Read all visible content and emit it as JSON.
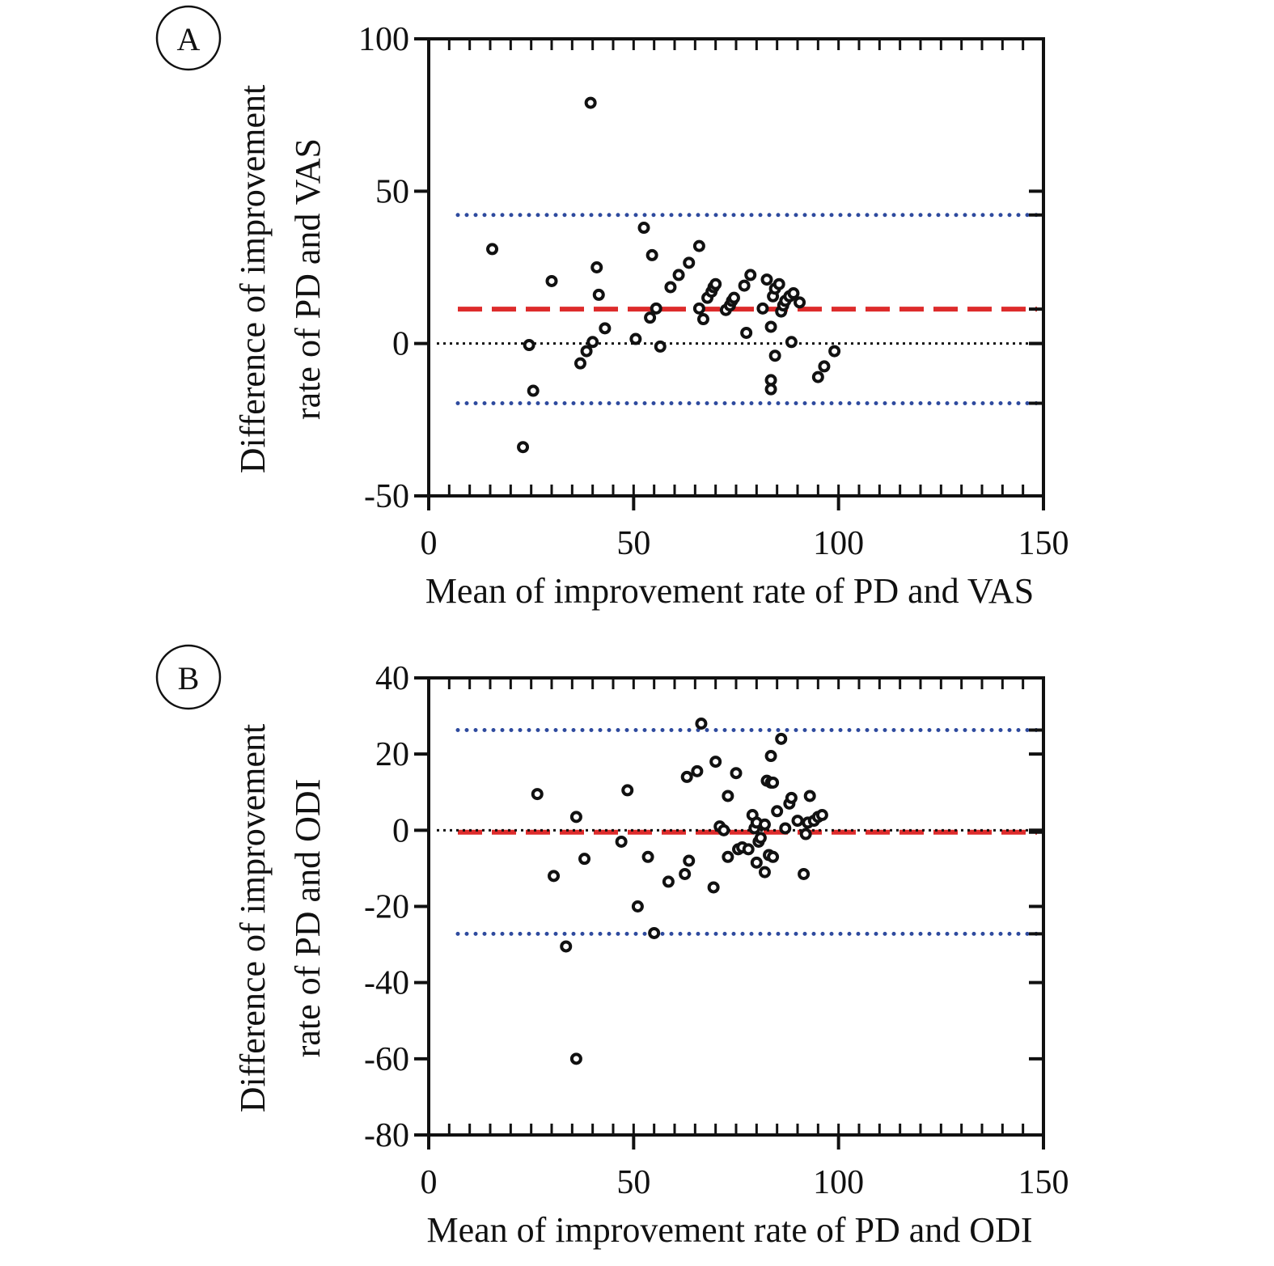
{
  "chart_data": [
    {
      "type": "scatter",
      "panel_label": "A",
      "xlabel": "Mean of improvement rate of PD and VAS",
      "ylabel_line1": "Difference of improvement",
      "ylabel_line2": "rate of PD and VAS",
      "xlim": [
        0,
        150
      ],
      "ylim": [
        -50,
        100
      ],
      "xticks": [
        "0",
        "50",
        "100",
        "150"
      ],
      "xtick_values": [
        0,
        50,
        100,
        150
      ],
      "yticks": [
        "100",
        "50",
        "0",
        "-50"
      ],
      "ytick_values": [
        100,
        50,
        0,
        -50
      ],
      "grid": false,
      "reference_lines": [
        {
          "kind": "upper-limit",
          "value": 42.2,
          "color": "#2e4a9e",
          "style": "dotted"
        },
        {
          "kind": "mean",
          "value": 11.3,
          "color": "#dd2b2b",
          "style": "dashed"
        },
        {
          "kind": "zero",
          "value": 0,
          "color": "#111111",
          "style": "dotted"
        },
        {
          "kind": "lower-limit",
          "value": -19.6,
          "color": "#2e4a9e",
          "style": "dotted"
        }
      ],
      "points": [
        [
          15.5,
          31
        ],
        [
          23,
          -34
        ],
        [
          24.5,
          -0.5
        ],
        [
          25.5,
          -15.5
        ],
        [
          30,
          20.5
        ],
        [
          37,
          -6.5
        ],
        [
          38.5,
          -2.5
        ],
        [
          40,
          0.5
        ],
        [
          39.5,
          79
        ],
        [
          41,
          25
        ],
        [
          41.5,
          16
        ],
        [
          43,
          5
        ],
        [
          50.5,
          1.5
        ],
        [
          52.5,
          38
        ],
        [
          54,
          8.5
        ],
        [
          54.5,
          29
        ],
        [
          55.5,
          11.5
        ],
        [
          56.5,
          -1
        ],
        [
          59,
          18.5
        ],
        [
          61,
          22.5
        ],
        [
          63.5,
          26.5
        ],
        [
          66,
          32
        ],
        [
          66,
          11.5
        ],
        [
          67,
          8
        ],
        [
          68,
          15
        ],
        [
          69,
          17
        ],
        [
          69.5,
          18.5
        ],
        [
          70,
          19.5
        ],
        [
          72.5,
          11
        ],
        [
          73.5,
          12.5
        ],
        [
          74,
          14
        ],
        [
          74.5,
          15
        ],
        [
          77,
          19
        ],
        [
          77.5,
          3.5
        ],
        [
          78.5,
          22.5
        ],
        [
          81.5,
          11.5
        ],
        [
          82.5,
          21
        ],
        [
          83.5,
          5.5
        ],
        [
          84,
          15.5
        ],
        [
          84.5,
          18
        ],
        [
          85.5,
          19.5
        ],
        [
          86,
          10.5
        ],
        [
          86.5,
          12.5
        ],
        [
          87,
          14
        ],
        [
          88,
          15.5
        ],
        [
          88.5,
          0.5
        ],
        [
          89,
          16.5
        ],
        [
          90.5,
          13.5
        ],
        [
          83.5,
          -12
        ],
        [
          83.5,
          -15
        ],
        [
          84.5,
          -4
        ],
        [
          95,
          -11
        ],
        [
          96.5,
          -7.5
        ],
        [
          99,
          -2.5
        ]
      ],
      "colors": {
        "points": "#111111",
        "axis": "#111111"
      }
    },
    {
      "type": "scatter",
      "panel_label": "B",
      "xlabel": "Mean of improvement rate of PD and ODI",
      "ylabel_line1": "Difference of improvement",
      "ylabel_line2": "rate of PD and ODI",
      "xlim": [
        0,
        150
      ],
      "ylim": [
        -80,
        40
      ],
      "xticks": [
        "0",
        "50",
        "100",
        "150"
      ],
      "xtick_values": [
        0,
        50,
        100,
        150
      ],
      "yticks": [
        "40",
        "20",
        "0",
        "-20",
        "-40",
        "-60",
        "-80"
      ],
      "ytick_values": [
        40,
        20,
        0,
        -20,
        -40,
        -60,
        -80
      ],
      "grid": false,
      "reference_lines": [
        {
          "kind": "upper-limit",
          "value": 26.3,
          "color": "#2e4a9e",
          "style": "dotted"
        },
        {
          "kind": "mean",
          "value": -0.5,
          "color": "#dd2b2b",
          "style": "dashed"
        },
        {
          "kind": "zero",
          "value": 0,
          "color": "#111111",
          "style": "dotted"
        },
        {
          "kind": "lower-limit",
          "value": -27.2,
          "color": "#2e4a9e",
          "style": "dotted"
        }
      ],
      "points": [
        [
          26.5,
          9.5
        ],
        [
          30.5,
          -12
        ],
        [
          33.5,
          -30.5
        ],
        [
          36,
          3.5
        ],
        [
          36,
          -60
        ],
        [
          38,
          -7.5
        ],
        [
          47,
          -3
        ],
        [
          48.5,
          10.5
        ],
        [
          51,
          -20
        ],
        [
          53.5,
          -7
        ],
        [
          55,
          -27
        ],
        [
          58.5,
          -13.5
        ],
        [
          62.5,
          -11.5
        ],
        [
          63,
          14
        ],
        [
          63.5,
          -8
        ],
        [
          65.5,
          15.5
        ],
        [
          66.5,
          28
        ],
        [
          69.5,
          -15
        ],
        [
          70,
          18
        ],
        [
          71,
          1
        ],
        [
          72,
          0
        ],
        [
          73,
          -7
        ],
        [
          73,
          9
        ],
        [
          75,
          15
        ],
        [
          75.5,
          -5
        ],
        [
          76.5,
          -4.5
        ],
        [
          78,
          -5
        ],
        [
          79,
          4
        ],
        [
          79.5,
          0.5
        ],
        [
          80,
          -8.5
        ],
        [
          80,
          2
        ],
        [
          80.5,
          -3
        ],
        [
          81,
          -2
        ],
        [
          82,
          -11
        ],
        [
          82,
          1.5
        ],
        [
          82.5,
          13
        ],
        [
          83,
          -6.5
        ],
        [
          83.5,
          19.5
        ],
        [
          83.5,
          12.5
        ],
        [
          84,
          12.5
        ],
        [
          84,
          -7
        ],
        [
          85,
          5
        ],
        [
          86,
          24
        ],
        [
          87,
          0.5
        ],
        [
          88,
          7
        ],
        [
          88.5,
          8.5
        ],
        [
          90,
          2.5
        ],
        [
          91.5,
          -11.5
        ],
        [
          92,
          -1
        ],
        [
          92.5,
          2
        ],
        [
          93,
          9
        ],
        [
          94,
          2.5
        ],
        [
          95,
          3.5
        ],
        [
          96,
          4
        ]
      ],
      "colors": {
        "points": "#111111",
        "axis": "#111111"
      }
    }
  ]
}
